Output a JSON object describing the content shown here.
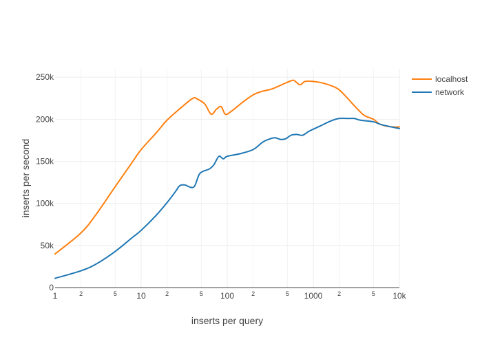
{
  "chart_data": {
    "type": "line",
    "xlabel": "inserts per query",
    "ylabel": "inserts per second",
    "xscale": "log",
    "xlim": [
      1,
      10000
    ],
    "ylim": [
      0,
      260000
    ],
    "grid": true,
    "legend_position": "top-right",
    "x_ticks": [
      {
        "value": 1,
        "label": "1"
      },
      {
        "value": 10,
        "label": "10"
      },
      {
        "value": 100,
        "label": "100"
      },
      {
        "value": 1000,
        "label": "1000"
      },
      {
        "value": 10000,
        "label": "10k"
      }
    ],
    "x_minor_ticks": [
      {
        "value": 2,
        "label": "2"
      },
      {
        "value": 5,
        "label": "5"
      },
      {
        "value": 20,
        "label": "2"
      },
      {
        "value": 50,
        "label": "5"
      },
      {
        "value": 200,
        "label": "2"
      },
      {
        "value": 500,
        "label": "5"
      },
      {
        "value": 2000,
        "label": "2"
      },
      {
        "value": 5000,
        "label": "5"
      }
    ],
    "y_ticks": [
      {
        "value": 0,
        "label": "0"
      },
      {
        "value": 50000,
        "label": "50k"
      },
      {
        "value": 100000,
        "label": "100k"
      },
      {
        "value": 150000,
        "label": "150k"
      },
      {
        "value": 200000,
        "label": "200k"
      },
      {
        "value": 250000,
        "label": "250k"
      }
    ],
    "series": [
      {
        "name": "localhost",
        "color": "#ff7f0e",
        "points": [
          [
            1,
            40000
          ],
          [
            2,
            65000
          ],
          [
            3,
            87000
          ],
          [
            5,
            120000
          ],
          [
            8,
            150000
          ],
          [
            10,
            164000
          ],
          [
            15,
            184000
          ],
          [
            20,
            199000
          ],
          [
            30,
            215000
          ],
          [
            40,
            225000
          ],
          [
            45,
            224000
          ],
          [
            55,
            218000
          ],
          [
            65,
            206000
          ],
          [
            75,
            212000
          ],
          [
            85,
            215000
          ],
          [
            95,
            206000
          ],
          [
            110,
            209000
          ],
          [
            150,
            220000
          ],
          [
            200,
            229000
          ],
          [
            250,
            233000
          ],
          [
            330,
            236000
          ],
          [
            450,
            242000
          ],
          [
            560,
            246000
          ],
          [
            600,
            246000
          ],
          [
            700,
            241000
          ],
          [
            800,
            245000
          ],
          [
            1000,
            245000
          ],
          [
            1300,
            243000
          ],
          [
            1700,
            239000
          ],
          [
            2000,
            235000
          ],
          [
            2500,
            225000
          ],
          [
            3000,
            216000
          ],
          [
            3500,
            209000
          ],
          [
            4000,
            204000
          ],
          [
            5000,
            200000
          ],
          [
            6000,
            194000
          ],
          [
            8000,
            191000
          ],
          [
            10000,
            191000
          ]
        ]
      },
      {
        "name": "network",
        "color": "#1f77b4",
        "points": [
          [
            1,
            11000
          ],
          [
            2,
            20000
          ],
          [
            3,
            28000
          ],
          [
            5,
            43000
          ],
          [
            8,
            60000
          ],
          [
            10,
            68000
          ],
          [
            15,
            86000
          ],
          [
            20,
            101000
          ],
          [
            25,
            114000
          ],
          [
            28,
            121000
          ],
          [
            32,
            122000
          ],
          [
            38,
            119000
          ],
          [
            42,
            121000
          ],
          [
            47,
            134000
          ],
          [
            52,
            138000
          ],
          [
            62,
            141000
          ],
          [
            70,
            146000
          ],
          [
            80,
            156000
          ],
          [
            90,
            153000
          ],
          [
            100,
            156000
          ],
          [
            140,
            159000
          ],
          [
            200,
            164000
          ],
          [
            260,
            173000
          ],
          [
            320,
            177000
          ],
          [
            360,
            178000
          ],
          [
            420,
            176000
          ],
          [
            480,
            177000
          ],
          [
            550,
            181000
          ],
          [
            640,
            182000
          ],
          [
            750,
            181000
          ],
          [
            900,
            186000
          ],
          [
            1200,
            192000
          ],
          [
            1600,
            198000
          ],
          [
            2000,
            201000
          ],
          [
            2500,
            201000
          ],
          [
            3000,
            201000
          ],
          [
            3500,
            199000
          ],
          [
            5000,
            197000
          ],
          [
            6000,
            194000
          ],
          [
            8000,
            191000
          ],
          [
            10000,
            189000
          ]
        ]
      }
    ]
  }
}
